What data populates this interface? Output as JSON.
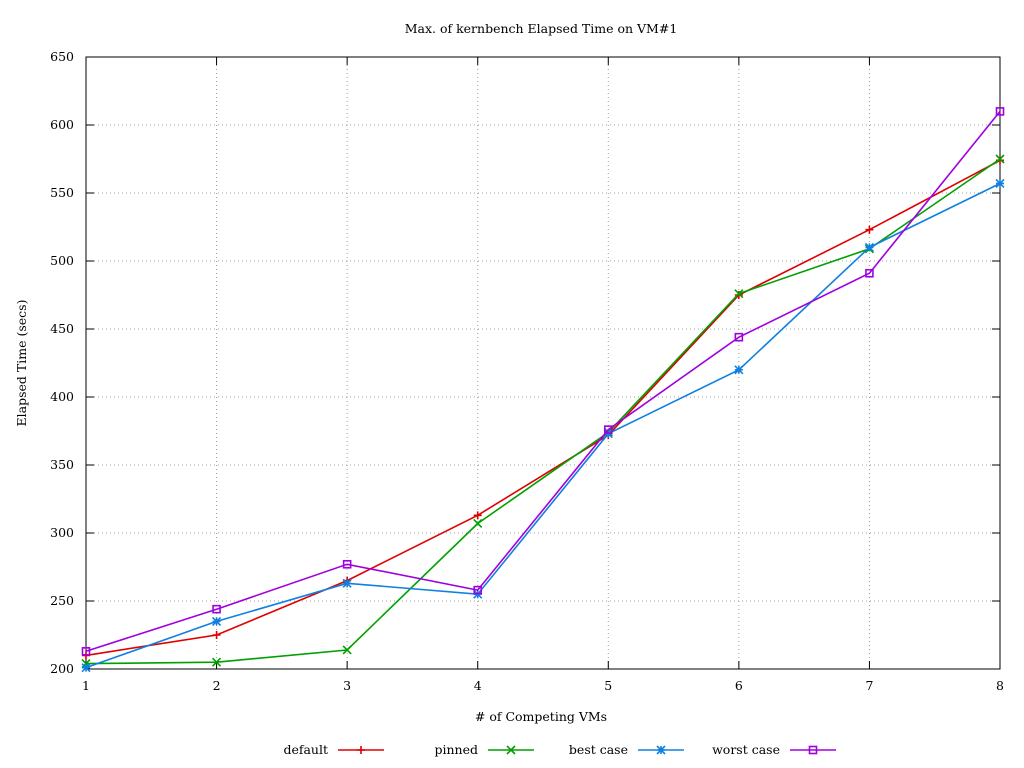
{
  "chart_data": {
    "type": "line",
    "title": "Max. of kernbench Elapsed Time on VM#1",
    "xlabel": "# of Competing VMs",
    "ylabel": "Elapsed Time (secs)",
    "x": [
      1,
      2,
      3,
      4,
      5,
      6,
      7,
      8
    ],
    "xlim": [
      1,
      8
    ],
    "ylim": [
      200,
      650
    ],
    "xticks": [
      1,
      2,
      3,
      4,
      5,
      6,
      7,
      8
    ],
    "yticks": [
      200,
      250,
      300,
      350,
      400,
      450,
      500,
      550,
      600,
      650
    ],
    "grid": true,
    "legend_position": "bottom",
    "series": [
      {
        "name": "default",
        "color": "#e00000",
        "marker": "plus",
        "values": [
          210,
          225,
          265,
          313,
          372,
          475,
          523,
          574
        ]
      },
      {
        "name": "pinned",
        "color": "#00a000",
        "marker": "cross",
        "values": [
          204,
          205,
          214,
          307,
          374,
          476,
          509,
          575
        ]
      },
      {
        "name": "best case",
        "color": "#1080e0",
        "marker": "star",
        "values": [
          201,
          235,
          263,
          255,
          373,
          420,
          510,
          557
        ]
      },
      {
        "name": "worst case",
        "color": "#a000e0",
        "marker": "square",
        "values": [
          213,
          244,
          277,
          258,
          376,
          444,
          491,
          610
        ]
      }
    ]
  }
}
